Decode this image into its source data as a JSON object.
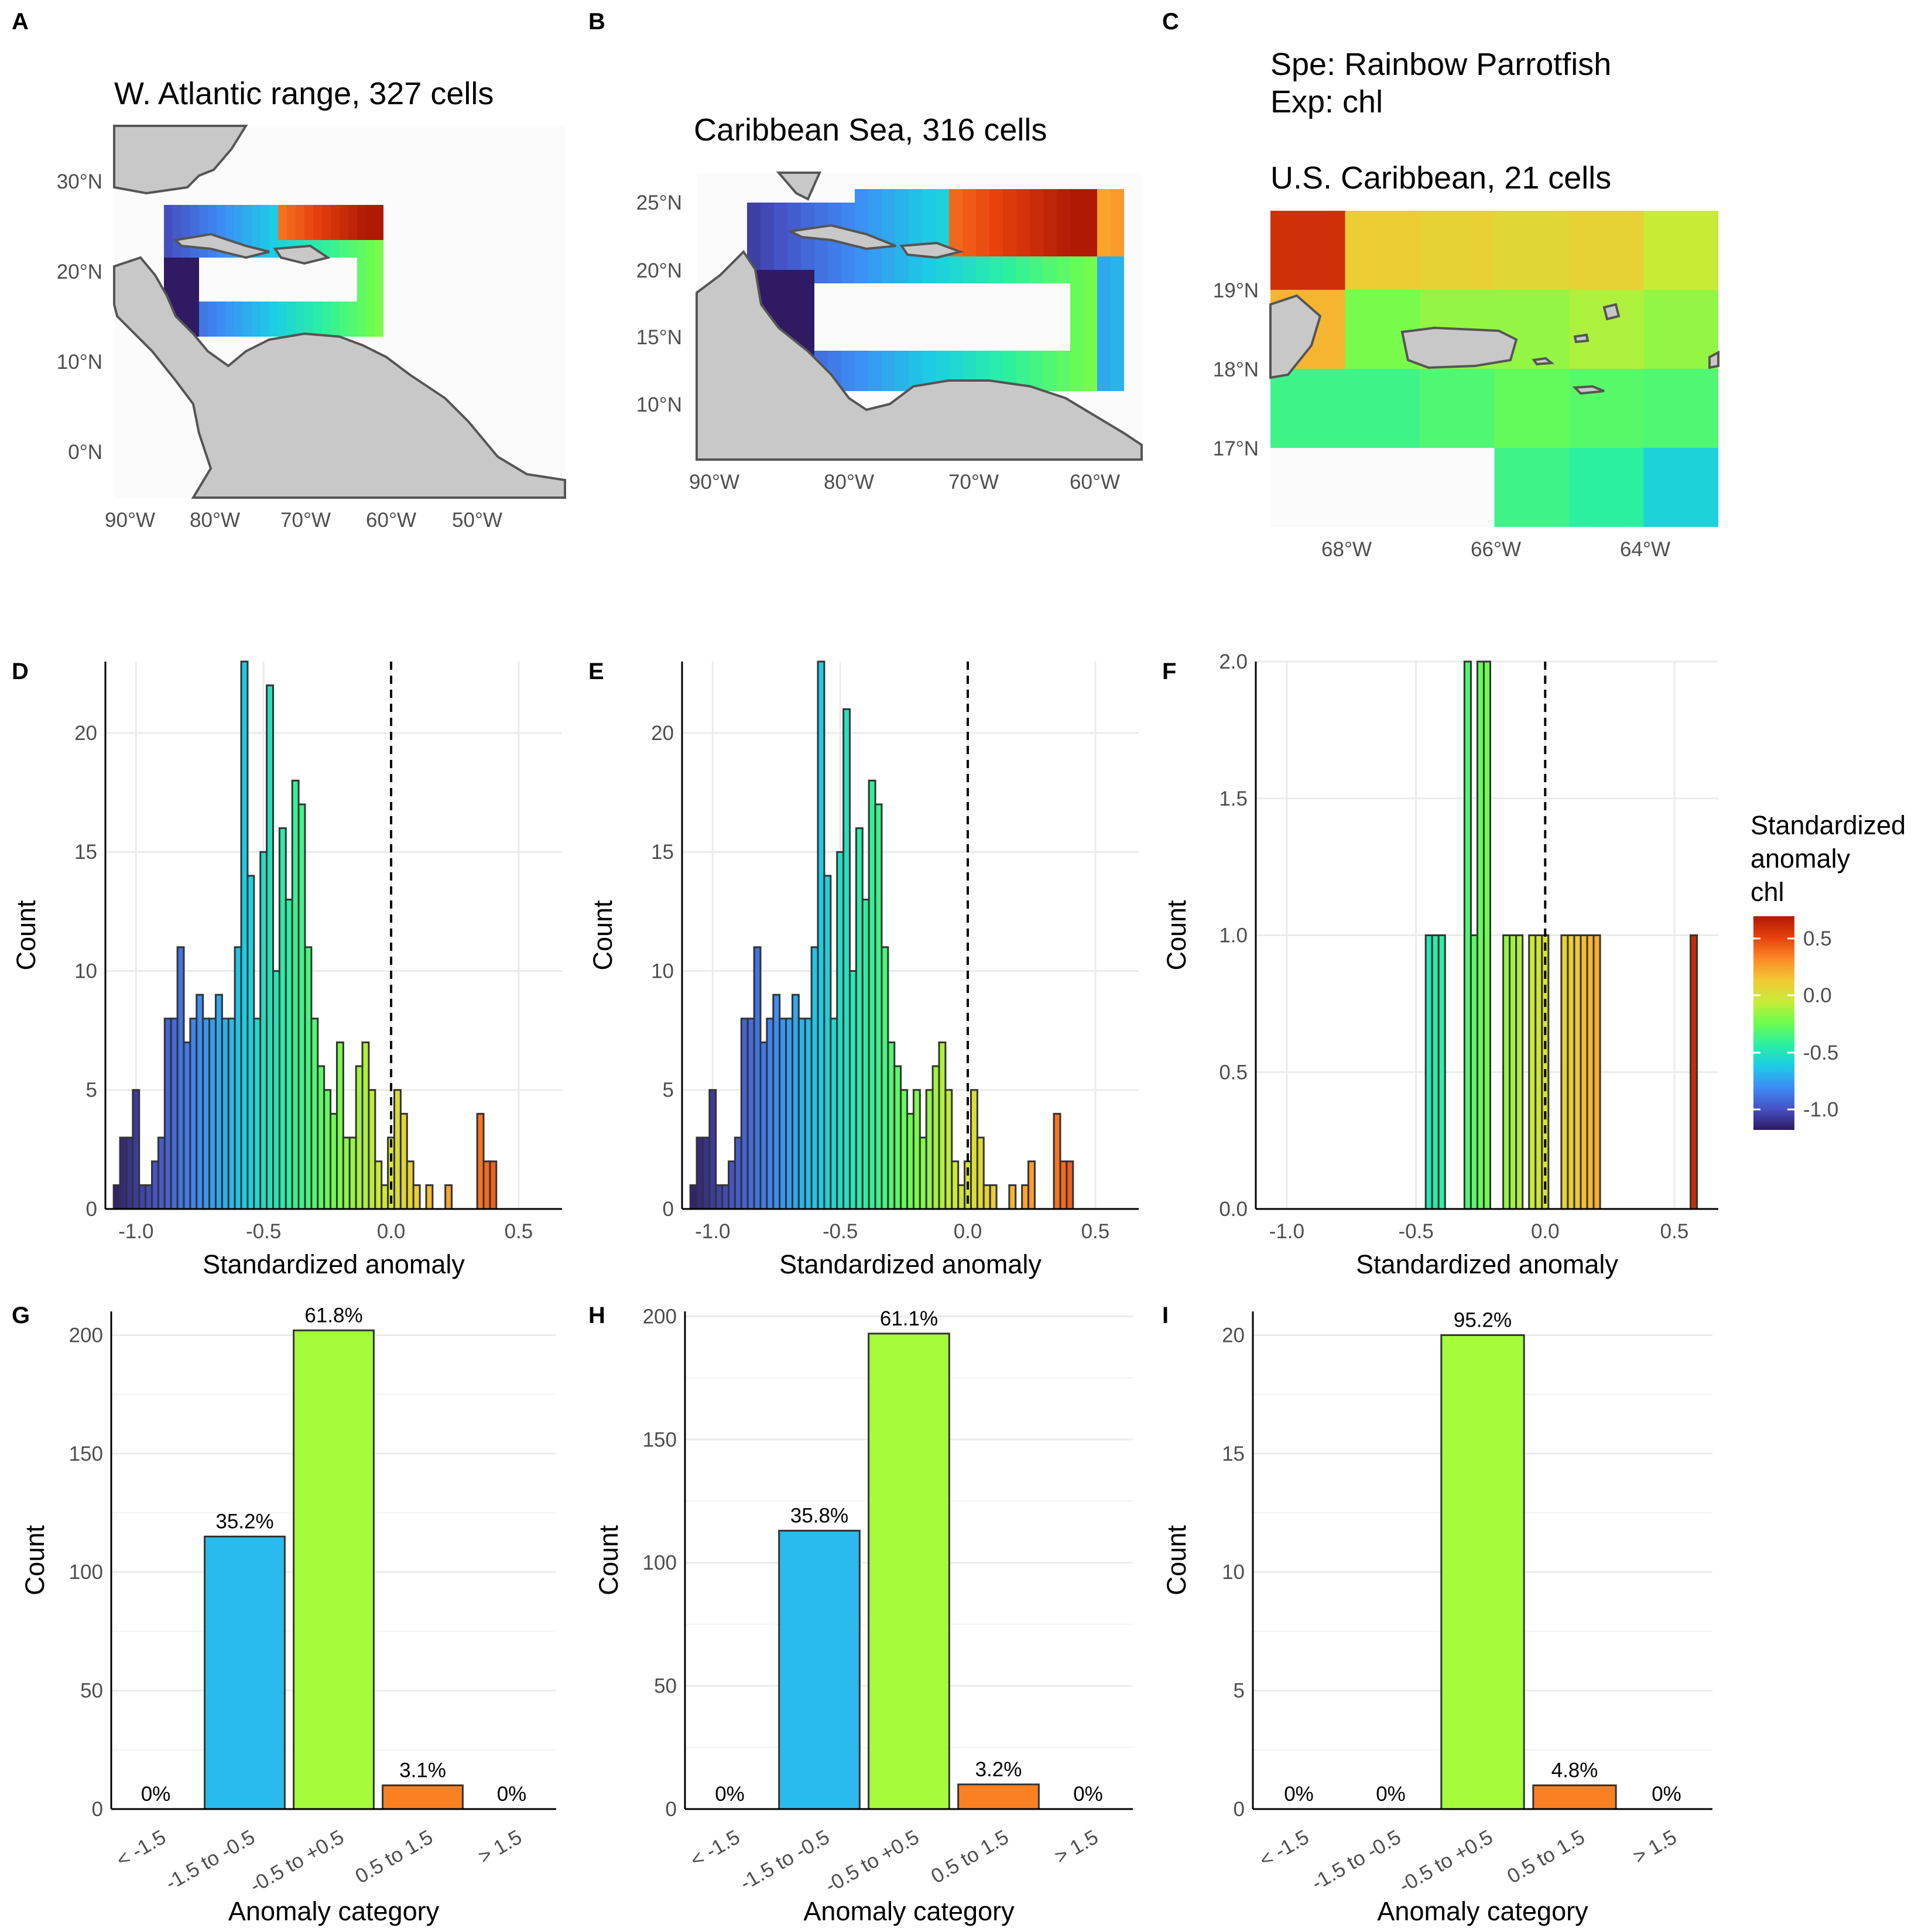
{
  "panels": {
    "A": {
      "letter": "A",
      "title": "W. Atlantic range, 327 cells",
      "lat_ticks": [
        "30°N",
        "20°N",
        "10°N",
        "0°N"
      ],
      "lon_ticks": [
        "90°W",
        "80°W",
        "70°W",
        "60°W",
        "50°W"
      ]
    },
    "B": {
      "letter": "B",
      "title": "Caribbean Sea, 316 cells",
      "lat_ticks": [
        "25°N",
        "20°N",
        "15°N",
        "10°N"
      ],
      "lon_ticks": [
        "90°W",
        "80°W",
        "70°W",
        "60°W"
      ]
    },
    "C": {
      "letter": "C",
      "species_line": "Spe: Rainbow Parrotfish",
      "exp_line": "Exp: chl",
      "title": "U.S. Caribbean, 21 cells",
      "lat_ticks": [
        "19°N",
        "18°N",
        "17°N"
      ],
      "lon_ticks": [
        "68°W",
        "66°W",
        "64°W"
      ]
    },
    "D": {
      "letter": "D"
    },
    "E": {
      "letter": "E"
    },
    "F": {
      "letter": "F"
    },
    "G": {
      "letter": "G"
    },
    "H": {
      "letter": "H"
    },
    "I": {
      "letter": "I"
    }
  },
  "legend": {
    "title_lines": [
      "Standardized",
      "anomaly",
      "chl"
    ],
    "ticks": [
      "0.5",
      "0.0",
      "-0.5",
      "-1.0"
    ],
    "colors": [
      "#b01a04",
      "#e7410e",
      "#fc8a27",
      "#f2c834",
      "#c8ec36",
      "#6cfd4f",
      "#2bf0a0",
      "#1bcde5",
      "#3d8df5",
      "#4653c6",
      "#2f1a63"
    ]
  },
  "chart_data": [
    {
      "panel": "D",
      "type": "bar",
      "subtype": "histogram",
      "xlabel": "Standardized anomaly",
      "ylabel": "Count",
      "xlim": [
        -1.12,
        0.67
      ],
      "ylim": [
        0,
        23
      ],
      "bin_width": 0.025,
      "x_ticks": [
        "-1.0",
        "-0.5",
        "0.0",
        "0.5"
      ],
      "y_ticks": [
        "0",
        "5",
        "10",
        "15",
        "20"
      ],
      "vline": 0.0,
      "bin_centers": [
        -1.1,
        -1.075,
        -1.05,
        -1.025,
        -1.0,
        -0.975,
        -0.95,
        -0.925,
        -0.9,
        -0.875,
        -0.85,
        -0.825,
        -0.8,
        -0.775,
        -0.75,
        -0.725,
        -0.7,
        -0.675,
        -0.65,
        -0.625,
        -0.6,
        -0.575,
        -0.55,
        -0.525,
        -0.5,
        -0.475,
        -0.45,
        -0.425,
        -0.4,
        -0.375,
        -0.35,
        -0.325,
        -0.3,
        -0.275,
        -0.25,
        -0.225,
        -0.2,
        -0.175,
        -0.15,
        -0.125,
        -0.1,
        -0.075,
        -0.05,
        -0.025,
        0.0,
        0.025,
        0.05,
        0.075,
        0.1,
        0.125,
        0.15,
        0.175,
        0.2,
        0.225,
        0.25,
        0.275,
        0.3,
        0.325,
        0.35,
        0.375,
        0.4,
        0.425,
        0.45,
        0.475,
        0.5,
        0.525,
        0.55,
        0.575,
        0.6,
        0.625,
        0.65
      ],
      "counts": [
        0,
        1,
        3,
        3,
        5,
        1,
        1,
        2,
        3,
        8,
        8,
        11,
        7,
        8,
        9,
        8,
        8,
        9,
        8,
        8,
        11,
        23,
        14,
        8,
        15,
        22,
        10,
        16,
        13,
        18,
        17,
        11,
        8,
        6,
        5,
        4,
        7,
        3,
        3,
        6,
        7,
        5,
        2,
        1,
        3,
        5,
        4,
        2,
        1,
        0,
        1,
        0,
        0,
        1,
        0,
        0,
        0,
        0,
        4,
        2,
        2,
        0,
        0,
        0,
        0,
        0,
        0,
        0,
        0,
        0,
        0
      ]
    },
    {
      "panel": "E",
      "type": "bar",
      "subtype": "histogram",
      "xlabel": "Standardized anomaly",
      "ylabel": "Count",
      "xlim": [
        -1.12,
        0.67
      ],
      "ylim": [
        0,
        23
      ],
      "bin_width": 0.025,
      "x_ticks": [
        "-1.0",
        "-0.5",
        "0.0",
        "0.5"
      ],
      "y_ticks": [
        "0",
        "5",
        "10",
        "15",
        "20"
      ],
      "vline": 0.0,
      "bin_centers": [
        -1.1,
        -1.075,
        -1.05,
        -1.025,
        -1.0,
        -0.975,
        -0.95,
        -0.925,
        -0.9,
        -0.875,
        -0.85,
        -0.825,
        -0.8,
        -0.775,
        -0.75,
        -0.725,
        -0.7,
        -0.675,
        -0.65,
        -0.625,
        -0.6,
        -0.575,
        -0.55,
        -0.525,
        -0.5,
        -0.475,
        -0.45,
        -0.425,
        -0.4,
        -0.375,
        -0.35,
        -0.325,
        -0.3,
        -0.275,
        -0.25,
        -0.225,
        -0.2,
        -0.175,
        -0.15,
        -0.125,
        -0.1,
        -0.075,
        -0.05,
        -0.025,
        0.0,
        0.025,
        0.05,
        0.075,
        0.1,
        0.125,
        0.15,
        0.175,
        0.2,
        0.225,
        0.25,
        0.275,
        0.3,
        0.325,
        0.35,
        0.375,
        0.4,
        0.425,
        0.45,
        0.475,
        0.5,
        0.525,
        0.55,
        0.575,
        0.6,
        0.625,
        0.65
      ],
      "counts": [
        0,
        1,
        3,
        3,
        5,
        1,
        1,
        2,
        3,
        8,
        8,
        11,
        7,
        8,
        9,
        8,
        8,
        9,
        8,
        8,
        11,
        23,
        14,
        8,
        15,
        21,
        10,
        16,
        13,
        18,
        17,
        11,
        7,
        6,
        5,
        4,
        5,
        3,
        5,
        6,
        7,
        5,
        2,
        1,
        2,
        5,
        3,
        1,
        1,
        0,
        0,
        1,
        0,
        1,
        2,
        0,
        0,
        0,
        4,
        2,
        2,
        0,
        0,
        0,
        0,
        0,
        0,
        0,
        0,
        0,
        0
      ]
    },
    {
      "panel": "F",
      "type": "bar",
      "subtype": "histogram",
      "xlabel": "Standardized anomaly",
      "ylabel": "Count",
      "xlim": [
        -1.12,
        0.67
      ],
      "ylim": [
        0,
        2
      ],
      "bin_width": 0.025,
      "x_ticks": [
        "-1.0",
        "-0.5",
        "0.0",
        "0.5"
      ],
      "y_ticks": [
        "0.0",
        "0.5",
        "1.0",
        "1.5",
        "2.0"
      ],
      "vline": 0.0,
      "bin_centers": [
        -0.45,
        -0.425,
        -0.4,
        -0.3,
        -0.275,
        -0.25,
        -0.225,
        -0.15,
        -0.125,
        -0.1,
        -0.05,
        -0.025,
        0.0,
        0.075,
        0.1,
        0.125,
        0.15,
        0.175,
        0.2,
        0.575
      ],
      "counts": [
        1,
        1,
        1,
        2,
        1,
        2,
        2,
        1,
        1,
        1,
        1,
        1,
        1,
        1,
        1,
        1,
        1,
        1,
        1,
        1
      ]
    },
    {
      "panel": "G",
      "type": "bar",
      "xlabel": "Anomaly category",
      "ylabel": "Count",
      "ylim": [
        0,
        210
      ],
      "y_ticks": [
        "0",
        "50",
        "100",
        "150",
        "200"
      ],
      "categories": [
        "< -1.5",
        "-1.5 to -0.5",
        "-0.5 to +0.5",
        "0.5 to 1.5",
        "> 1.5"
      ],
      "values": [
        0,
        115,
        202,
        10,
        0
      ],
      "labels": [
        "0%",
        "35.2%",
        "61.8%",
        "3.1%",
        "0%"
      ],
      "colors": [
        "#ffffff",
        "#29bbec",
        "#a4fc3b",
        "#fb8022",
        "#ffffff"
      ]
    },
    {
      "panel": "H",
      "type": "bar",
      "xlabel": "Anomaly category",
      "ylabel": "Count",
      "ylim": [
        0,
        202
      ],
      "y_ticks": [
        "0",
        "50",
        "100",
        "150",
        "200"
      ],
      "categories": [
        "< -1.5",
        "-1.5 to -0.5",
        "-0.5 to +0.5",
        "0.5 to 1.5",
        "> 1.5"
      ],
      "values": [
        0,
        113,
        193,
        10,
        0
      ],
      "labels": [
        "0%",
        "35.8%",
        "61.1%",
        "3.2%",
        "0%"
      ],
      "colors": [
        "#ffffff",
        "#29bbec",
        "#a4fc3b",
        "#fb8022",
        "#ffffff"
      ]
    },
    {
      "panel": "I",
      "type": "bar",
      "xlabel": "Anomaly category",
      "ylabel": "Count",
      "ylim": [
        0,
        21
      ],
      "y_ticks": [
        "0",
        "5",
        "10",
        "15",
        "20"
      ],
      "categories": [
        "< -1.5",
        "-1.5 to -0.5",
        "-0.5 to +0.5",
        "0.5 to 1.5",
        "> 1.5"
      ],
      "values": [
        0,
        0,
        20,
        1,
        0
      ],
      "labels": [
        "0%",
        "0%",
        "95.2%",
        "4.8%",
        "0%"
      ],
      "colors": [
        "#ffffff",
        "#29bbec",
        "#a4fc3b",
        "#fb8022",
        "#ffffff"
      ]
    }
  ]
}
